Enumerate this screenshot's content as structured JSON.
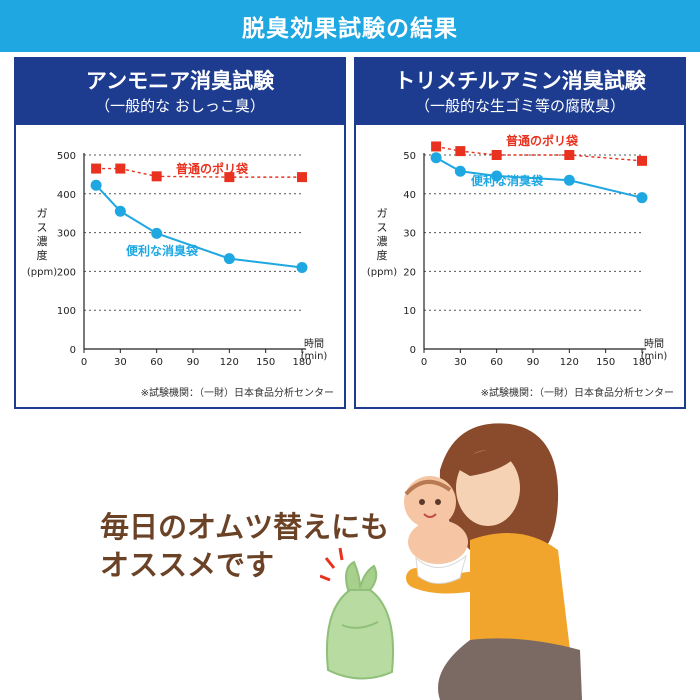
{
  "header": {
    "title": "脱臭効果試験の結果"
  },
  "colors": {
    "banner": "#1ea7e1",
    "panel": "#1d3c8f",
    "regular_bag": "#e8311e",
    "convenient_bag": "#1ea7e1",
    "promo_text": "#6b4226"
  },
  "promo": {
    "line1": "毎日のオムツ替えにも",
    "line2": "オススメです"
  },
  "chart_data": [
    {
      "type": "line",
      "title": "アンモニア消臭試験",
      "subtitle": "（一般的な おしっこ臭）",
      "ylabel": "ガス濃度\n(ppm)",
      "xlabel": "時間\n(min)",
      "ylim": [
        0,
        500
      ],
      "yticks": [
        0,
        100,
        200,
        300,
        400,
        500
      ],
      "xticks": [
        0,
        30,
        60,
        90,
        120,
        150,
        180
      ],
      "xlim": [
        0,
        180
      ],
      "grid": true,
      "series": [
        {
          "name": "普通のポリ袋",
          "marker": "square",
          "dashed": true,
          "x": [
            10,
            30,
            60,
            120,
            180
          ],
          "values": [
            465,
            465,
            445,
            443,
            443
          ]
        },
        {
          "name": "便利な消臭袋",
          "marker": "circle",
          "dashed": false,
          "x": [
            10,
            30,
            60,
            120,
            180
          ],
          "values": [
            422,
            355,
            298,
            233,
            210
          ]
        }
      ],
      "source": "※試験機関：（一財）日本食品分析センター"
    },
    {
      "type": "line",
      "title": "トリメチルアミン消臭試験",
      "subtitle": "（一般的な生ゴミ等の腐敗臭）",
      "ylabel": "ガス濃度\n(ppm)",
      "xlabel": "時間\n(min)",
      "ylim": [
        0,
        50
      ],
      "yticks": [
        0,
        10,
        20,
        30,
        40,
        50
      ],
      "xticks": [
        0,
        30,
        60,
        90,
        120,
        150,
        180
      ],
      "xlim": [
        0,
        180
      ],
      "grid": true,
      "series": [
        {
          "name": "普通のポリ袋",
          "marker": "square",
          "dashed": true,
          "x": [
            10,
            30,
            60,
            120,
            180
          ],
          "values": [
            52.2,
            51,
            50,
            50,
            48.5
          ]
        },
        {
          "name": "便利な消臭袋",
          "marker": "circle",
          "dashed": false,
          "x": [
            10,
            30,
            60,
            120,
            180
          ],
          "values": [
            49.3,
            45.8,
            44.6,
            43.5,
            39
          ]
        }
      ],
      "source": "※試験機関：（一財）日本食品分析センター"
    }
  ]
}
